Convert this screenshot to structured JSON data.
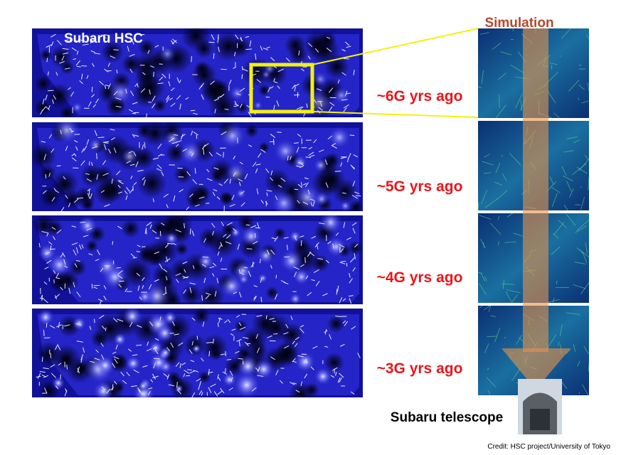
{
  "survey_label": "Subaru HSC",
  "simulation_label": "Simulation",
  "epochs": [
    "~6G yrs ago",
    "~5G yrs ago",
    "~4G yrs ago",
    "~3G yrs ago"
  ],
  "telescope_label": "Subaru telescope",
  "credit": "Credit: HSC project/University of Tokyo"
}
